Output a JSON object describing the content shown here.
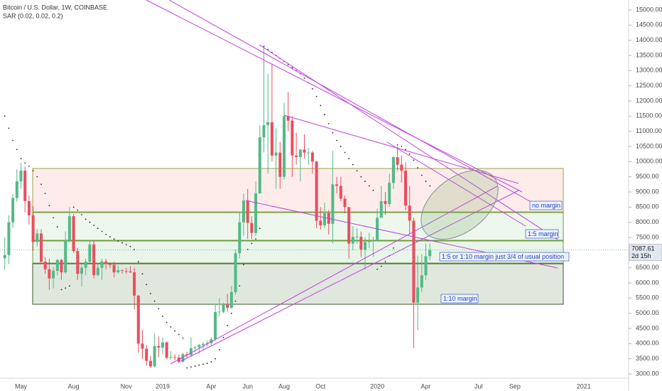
{
  "chart_data": {
    "type": "candlestick",
    "title": "Bitcoin / U.S. Dollar, 1W, COINBASE",
    "categories": [
      null,
      null,
      null,
      null,
      "May",
      null,
      null,
      null,
      null,
      null,
      null,
      null,
      null,
      null,
      null,
      null,
      null,
      "Aug",
      null,
      null,
      null,
      null,
      null,
      null,
      null,
      null,
      null,
      null,
      null,
      null,
      "Nov",
      null,
      null,
      null,
      null,
      null,
      null,
      null,
      null,
      "2019",
      null,
      null,
      null,
      null,
      null,
      null,
      null,
      null,
      null,
      null,
      null,
      "Apr",
      null,
      null,
      null,
      null,
      null,
      null,
      null,
      null,
      "Jun",
      null,
      null,
      null,
      null,
      null,
      null,
      null,
      null,
      "Aug",
      null,
      null,
      null,
      null,
      null,
      null,
      null,
      null,
      "Oct",
      null,
      null,
      null,
      null,
      null,
      null,
      null,
      null,
      null,
      null,
      null,
      null,
      null,
      "2020",
      null,
      null,
      null,
      null,
      null,
      null,
      null,
      null,
      null,
      null,
      null,
      "Apr",
      null,
      null,
      null,
      null,
      null,
      null,
      null,
      null,
      null,
      null,
      null,
      null,
      "Jul",
      null,
      null,
      null,
      null,
      null,
      null,
      null,
      null,
      "Sep",
      null,
      null,
      null,
      null,
      null,
      null,
      null,
      null,
      null,
      null,
      null,
      null,
      null,
      null,
      null,
      null,
      "2021",
      null,
      null,
      null,
      null,
      null,
      null,
      null,
      null,
      null,
      null,
      null
    ],
    "open": [
      6810,
      6920,
      8000,
      8800,
      9350,
      9700,
      8700,
      8230,
      7350,
      7630,
      6700,
      6450,
      6150,
      6400,
      6760,
      6350,
      7400,
      8200,
      7050,
      6300,
      6500,
      6700,
      7270,
      6260,
      6500,
      6710,
      6620,
      6600,
      6350,
      6420,
      6400,
      6380,
      6350,
      5580,
      4000,
      3830,
      3430,
      3250,
      3920,
      3870,
      4040,
      3530,
      3550,
      3540,
      3400,
      3650,
      3620,
      3850,
      3880,
      3950,
      3990,
      4020,
      4140,
      5040,
      5050,
      5300,
      5180,
      5700,
      6980,
      8000,
      8720,
      7980,
      7650,
      8950,
      10800,
      11200,
      11300,
      10200,
      10300,
      9500,
      11500,
      11350,
      10200,
      10150,
      10400,
      10300,
      10300,
      10000,
      8050,
      7900,
      8300,
      7950,
      9250,
      9200,
      8780,
      8500,
      7300,
      7520,
      7520,
      7100,
      7350,
      7380,
      7400,
      8150,
      8700,
      8600,
      9300,
      10150,
      9900,
      9700,
      8550,
      8050,
      5350,
      5850,
      6250,
      6880,
      null,
      null,
      null,
      null,
      null,
      null,
      null,
      null,
      null,
      null,
      null,
      null,
      null,
      null,
      null,
      null,
      null,
      null,
      null,
      null,
      null,
      null,
      null,
      null,
      null,
      null,
      null,
      null,
      null,
      null,
      null,
      null,
      null,
      null,
      null,
      null,
      null,
      null,
      null,
      null,
      null,
      null,
      null,
      null,
      null,
      null,
      null,
      null,
      null
    ],
    "high": [
      7500,
      8230,
      8930,
      9750,
      9960,
      9830,
      8880,
      8530,
      7780,
      7770,
      6850,
      6800,
      6530,
      6780,
      6790,
      7700,
      8500,
      8280,
      7150,
      6600,
      6800,
      7400,
      7410,
      6650,
      6800,
      6790,
      6680,
      6700,
      6580,
      6450,
      6500,
      6550,
      6500,
      5600,
      4450,
      3950,
      3600,
      4350,
      4240,
      4200,
      4070,
      3750,
      3650,
      3640,
      3700,
      3730,
      4200,
      3910,
      3990,
      4040,
      4100,
      4200,
      5300,
      5500,
      5350,
      5640,
      5900,
      7100,
      8330,
      8950,
      9100,
      8200,
      9350,
      11200,
      13800,
      12900,
      13200,
      11100,
      10650,
      11950,
      12300,
      11500,
      10950,
      10400,
      10900,
      10450,
      10350,
      10030,
      8500,
      8650,
      8400,
      10350,
      9500,
      9500,
      8880,
      8500,
      7870,
      7800,
      7700,
      7500,
      7650,
      7520,
      8450,
      9200,
      9000,
      9600,
      10170,
      10500,
      10200,
      9970,
      9200,
      8150,
      6900,
      6950,
      7300,
      7300,
      null,
      null,
      null,
      null,
      null,
      null,
      null,
      null,
      null,
      null,
      null,
      null,
      null,
      null,
      null,
      null,
      null,
      null,
      null,
      null,
      null,
      null,
      null,
      null,
      null,
      null,
      null,
      null,
      null,
      null,
      null,
      null,
      null,
      null,
      null,
      null,
      null,
      null,
      null,
      null,
      null,
      null,
      null,
      null,
      null,
      null,
      null,
      null,
      null
    ],
    "low": [
      6430,
      6620,
      7820,
      8670,
      9100,
      8330,
      7930,
      7060,
      7200,
      6650,
      6300,
      5780,
      5820,
      6250,
      6100,
      6300,
      7330,
      7000,
      6100,
      5880,
      6250,
      6650,
      6150,
      6200,
      6100,
      6450,
      6490,
      6180,
      6300,
      6310,
      6300,
      6330,
      5130,
      3700,
      3490,
      3270,
      3200,
      3220,
      3550,
      3650,
      3500,
      3470,
      3450,
      3350,
      3380,
      3530,
      3600,
      3710,
      3670,
      3780,
      3900,
      3950,
      4100,
      4900,
      5000,
      5050,
      5150,
      5620,
      6800,
      7560,
      7450,
      7450,
      7560,
      8950,
      10300,
      9600,
      10000,
      9100,
      9100,
      9400,
      11000,
      9500,
      9900,
      9350,
      10100,
      9900,
      9600,
      7800,
      7760,
      7800,
      7600,
      7300,
      8950,
      8700,
      8300,
      6800,
      7080,
      7300,
      6850,
      6430,
      7150,
      6860,
      7400,
      8150,
      8250,
      8500,
      9100,
      9700,
      9300,
      8400,
      7600,
      3850,
      4450,
      5700,
      6100,
      6750,
      null,
      null,
      null,
      null,
      null,
      null,
      null,
      null,
      null,
      null,
      null,
      null,
      null,
      null,
      null,
      null,
      null,
      null,
      null,
      null,
      null,
      null,
      null,
      null,
      null,
      null,
      null,
      null,
      null,
      null,
      null,
      null,
      null,
      null,
      null,
      null,
      null,
      null,
      null,
      null,
      null,
      null,
      null,
      null,
      null,
      null,
      null,
      null,
      null
    ],
    "close": [
      6920,
      8000,
      8800,
      9350,
      9700,
      8700,
      8230,
      7350,
      7630,
      6700,
      6450,
      6150,
      6400,
      6760,
      6350,
      7400,
      8200,
      7050,
      6300,
      6500,
      6700,
      7270,
      6260,
      6500,
      6710,
      6620,
      6600,
      6350,
      6420,
      6400,
      6380,
      6350,
      5580,
      4000,
      3830,
      3430,
      3250,
      3920,
      3870,
      4040,
      3530,
      3550,
      3540,
      3400,
      3650,
      3620,
      3850,
      3880,
      3950,
      3990,
      4020,
      4140,
      5040,
      5050,
      5300,
      5180,
      5700,
      6980,
      8000,
      8720,
      7980,
      7650,
      8950,
      10800,
      11200,
      11300,
      10200,
      10300,
      9500,
      11500,
      11350,
      10200,
      10150,
      10400,
      10300,
      10300,
      10000,
      8050,
      7900,
      8300,
      7950,
      9250,
      9200,
      8780,
      8500,
      7300,
      7520,
      7520,
      7100,
      7350,
      7380,
      7400,
      8150,
      8700,
      8600,
      9300,
      10150,
      9900,
      9700,
      8550,
      8050,
      5350,
      5850,
      6250,
      6880,
      7087.61,
      null,
      null,
      null,
      null,
      null,
      null,
      null,
      null,
      null,
      null,
      null,
      null,
      null,
      null,
      null,
      null,
      null,
      null,
      null,
      null,
      null,
      null,
      null,
      null,
      null,
      null,
      null,
      null,
      null,
      null,
      null,
      null,
      null,
      null,
      null,
      null,
      null,
      null,
      null,
      null,
      null,
      null,
      null,
      null,
      null,
      null,
      null,
      null,
      null
    ],
    "up_color": "#53b987",
    "down_color": "#eb4d5c",
    "sar": {
      "name": "SAR (0.02, 0.02, 0.2)",
      "color": "#222222",
      "values": [
        11500,
        11100,
        10700,
        10400,
        10100,
        9950,
        9850,
        9700,
        9500,
        9250,
        8950,
        8550,
        8150,
        7850,
        5780,
        5830,
        5900,
        8500,
        8400,
        8250,
        8100,
        8000,
        7900,
        7800,
        7700,
        7600,
        7520,
        7450,
        7380,
        7320,
        7260,
        7200,
        7100,
        6700,
        6300,
        5950,
        5650,
        5400,
        5150,
        4900,
        4700,
        4550,
        4420,
        4300,
        4180,
        3200,
        3230,
        3260,
        3290,
        3320,
        3350,
        3400,
        3500,
        3800,
        4200,
        4600,
        5000,
        5400,
        5900,
        6600,
        7100,
        7300,
        7450,
        7800,
        13800,
        13700,
        13600,
        13500,
        13400,
        13300,
        13200,
        13100,
        13000,
        12900,
        12750,
        12600,
        12400,
        12150,
        11850,
        11550,
        11250,
        10950,
        10700,
        10500,
        10300,
        10100,
        9900,
        9700,
        9500,
        9350,
        9200,
        9050,
        6450,
        6550,
        6700,
        6900,
        7150,
        10550,
        10500,
        10400,
        10250,
        10050,
        9800,
        9550,
        9350,
        9200,
        null,
        null,
        null,
        null,
        null,
        null,
        null,
        null,
        null,
        null,
        null,
        null,
        null,
        null,
        null,
        null,
        null,
        null,
        null,
        null,
        null,
        null,
        null,
        null,
        null,
        null,
        null,
        null,
        null,
        null,
        null,
        null,
        null,
        null,
        null,
        null,
        null,
        null,
        null,
        null,
        null,
        null,
        null,
        null,
        null,
        null,
        null,
        null,
        null
      ]
    },
    "countdown": "2d 15h",
    "annotations": [
      "no margin",
      "1:5 margin",
      "1:5 or 1:10 margin just 3/4 of usual position",
      "1:10 margin"
    ],
    "ylim": [
      3000,
      15000
    ],
    "yticks": [
      {
        "value": 3000,
        "label": "3000.00"
      },
      {
        "value": 3500,
        "label": "3500.00"
      },
      {
        "value": 4000,
        "label": "4000.00"
      },
      {
        "value": 4500,
        "label": "4500.00"
      },
      {
        "value": 5000,
        "label": "5000.00"
      },
      {
        "value": 5500,
        "label": "5500.00"
      },
      {
        "value": 6000,
        "label": "6000.00"
      },
      {
        "value": 6500,
        "label": "6500.00"
      },
      {
        "value": 7000,
        "label": "7000.00"
      },
      {
        "value": 7500,
        "label": "7500.00"
      },
      {
        "value": 8000,
        "label": "8000.00"
      },
      {
        "value": 8500,
        "label": "8500.00"
      },
      {
        "value": 9000,
        "label": "9000.00"
      },
      {
        "value": 9500,
        "label": "9500.00"
      },
      {
        "value": 10000,
        "label": "10000.00"
      },
      {
        "value": 10500,
        "label": "10500.00"
      },
      {
        "value": 11000,
        "label": "11000.00"
      },
      {
        "value": 11500,
        "label": "11500.00"
      },
      {
        "value": 12000,
        "label": "12000.00"
      },
      {
        "value": 12500,
        "label": "12500.00"
      },
      {
        "value": 13000,
        "label": "13000.00"
      },
      {
        "value": 13500,
        "label": "13500.00"
      },
      {
        "value": 14000,
        "label": "14000.00"
      },
      {
        "value": 14500,
        "label": "14500.00"
      },
      {
        "value": 15000,
        "label": "15000.00"
      }
    ],
    "grid": false
  }
}
